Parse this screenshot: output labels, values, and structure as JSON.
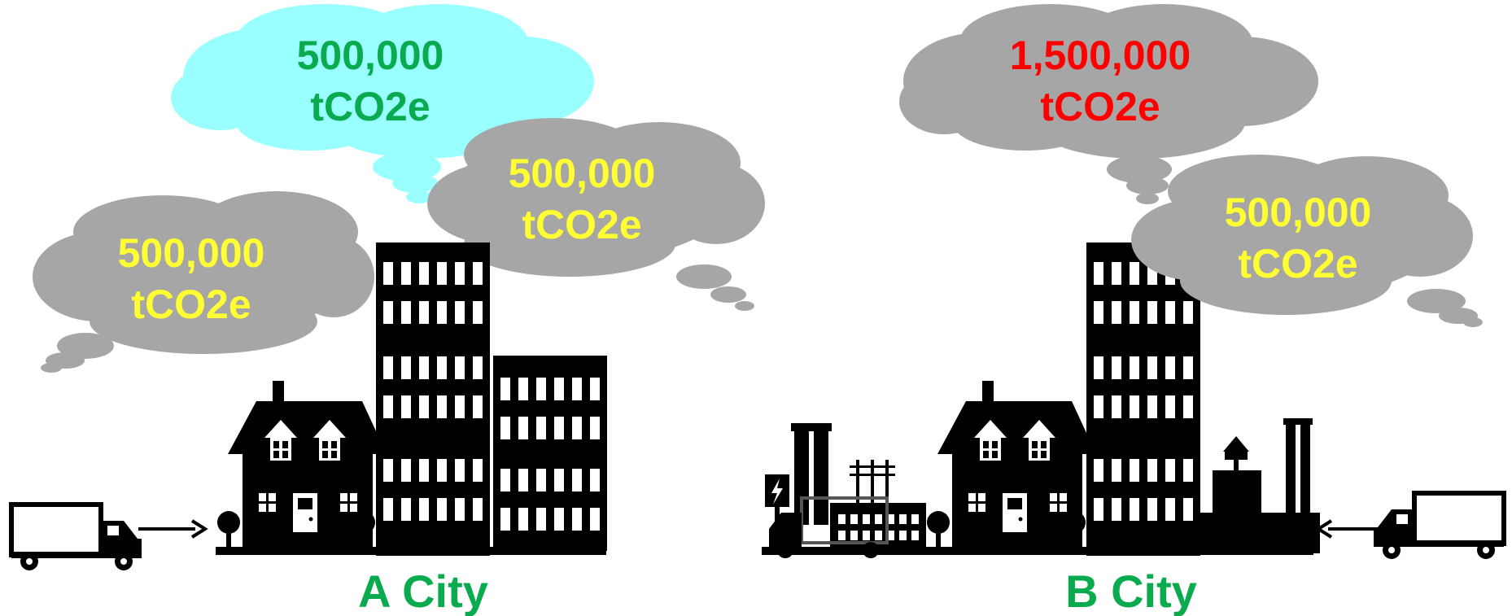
{
  "colors": {
    "green": "#0aaa4f",
    "yellow": "#ffff33",
    "red": "#ff0000",
    "cloud_gray": "#a6a6a6",
    "cloud_cyan": "#99ffff",
    "silhouette": "#000000"
  },
  "city_a": {
    "label": "A City",
    "clouds": [
      {
        "value": "500,000",
        "unit": "tCO2e",
        "text_color": "green",
        "cloud_color": "cyan"
      },
      {
        "value": "500,000",
        "unit": "tCO2e",
        "text_color": "yellow",
        "cloud_color": "gray"
      },
      {
        "value": "500,000",
        "unit": "tCO2e",
        "text_color": "yellow",
        "cloud_color": "gray"
      }
    ]
  },
  "city_b": {
    "label": "B City",
    "clouds": [
      {
        "value": "1,500,000",
        "unit": "tCO2e",
        "text_color": "red",
        "cloud_color": "gray"
      },
      {
        "value": "500,000",
        "unit": "tCO2e",
        "text_color": "yellow",
        "cloud_color": "gray"
      }
    ]
  },
  "icons": [
    "truck-icon",
    "arrow-icon",
    "house-icon",
    "tree-icon",
    "office-building-icon",
    "factory-icon",
    "power-plant-icon",
    "lightning-icon"
  ]
}
